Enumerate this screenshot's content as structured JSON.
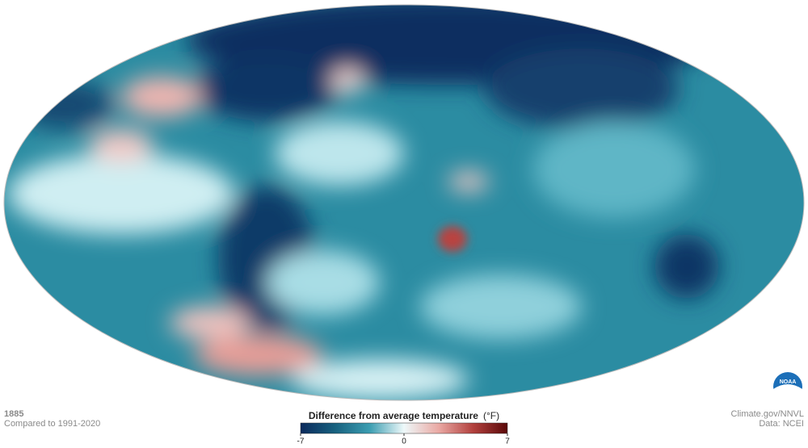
{
  "caption": {
    "year": "1885",
    "baseline": "Compared to 1991-2020"
  },
  "credits": {
    "source": "Climate.gov/NNVL",
    "data": "Data: NCEI",
    "logo": "NOAA"
  },
  "legend": {
    "title": "Difference from average temperature",
    "unit": "(°F)",
    "range": [
      -7,
      7
    ],
    "ticks": [
      -7,
      0,
      7
    ],
    "colors": [
      "#0b2a5c",
      "#17617f",
      "#3b9db1",
      "#eef9fa",
      "#eaa9a4",
      "#b3413e",
      "#5a0808"
    ]
  }
}
